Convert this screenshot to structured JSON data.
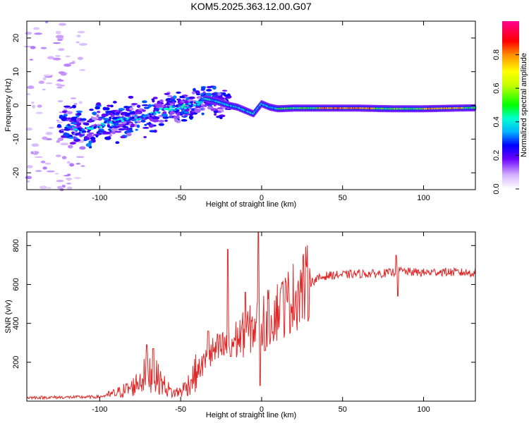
{
  "title": "KOM5.2025.363.12.00.G07",
  "chart_data": [
    {
      "type": "heatmap",
      "name": "spectrum",
      "xlabel": "Height of straight line (km)",
      "ylabel": "Frequency (Hz)",
      "xlim": [
        -145,
        132
      ],
      "ylim": [
        -25,
        25
      ],
      "xticks": [
        -100,
        -50,
        0,
        50,
        100
      ],
      "yticks": [
        -20,
        -10,
        0,
        10,
        20
      ],
      "colorbar": {
        "label": "Normalized spectral amplitude",
        "range": [
          0,
          1
        ],
        "ticks": [
          0.0,
          0.2,
          0.4,
          0.6,
          0.8
        ]
      },
      "ridge": {
        "x": [
          -145,
          -120,
          -110,
          -100,
          -90,
          -80,
          -70,
          -60,
          -50,
          -40,
          -35,
          -30,
          -25,
          -20,
          -15,
          -10,
          -5,
          0,
          5,
          10,
          20,
          40,
          60,
          80,
          100,
          120,
          132
        ],
        "freq": [
          -3,
          -6,
          -7.5,
          -6,
          -4.5,
          -4,
          -3,
          -1,
          -0.5,
          0.5,
          2,
          1.5,
          0.8,
          0,
          -0.5,
          -1.5,
          -2.5,
          0.5,
          -0.5,
          -1,
          -0.8,
          -0.8,
          -0.8,
          -1,
          -1,
          -0.8,
          -0.7
        ]
      }
    },
    {
      "type": "line",
      "name": "snr",
      "xlabel": "Height of straight line (km)",
      "ylabel": "SNR (v/v)",
      "xlim": [
        -145,
        132
      ],
      "ylim": [
        0,
        870
      ],
      "xticks": [
        -100,
        -50,
        0,
        50,
        100
      ],
      "yticks": [
        200,
        400,
        600,
        800
      ],
      "color": "#e02828",
      "trend": {
        "x": [
          -145,
          -120,
          -100,
          -90,
          -80,
          -75,
          -70,
          -65,
          -60,
          -55,
          -50,
          -45,
          -40,
          -35,
          -30,
          -25,
          -20,
          -15,
          -10,
          -5,
          0,
          5,
          10,
          15,
          20,
          25,
          30,
          35,
          40,
          50,
          60,
          70,
          80,
          85,
          90,
          100,
          110,
          120,
          132
        ],
        "y": [
          18,
          20,
          22,
          40,
          70,
          110,
          150,
          125,
          80,
          40,
          50,
          90,
          150,
          200,
          250,
          270,
          290,
          320,
          350,
          380,
          410,
          430,
          470,
          500,
          540,
          580,
          610,
          630,
          645,
          650,
          655,
          655,
          660,
          670,
          665,
          660,
          665,
          662,
          660
        ]
      },
      "spikes": [
        {
          "x": -71,
          "y": 290
        },
        {
          "x": -67,
          "y": 270
        },
        {
          "x": -33,
          "y": 360
        },
        {
          "x": -21,
          "y": 780
        },
        {
          "x": -19,
          "y": 230
        },
        {
          "x": -10,
          "y": 560
        },
        {
          "x": -2,
          "y": 870
        },
        {
          "x": -1,
          "y": 80
        },
        {
          "x": 2,
          "y": 260
        },
        {
          "x": 12,
          "y": 580
        },
        {
          "x": 83,
          "y": 750
        },
        {
          "x": 84,
          "y": 540
        }
      ]
    }
  ]
}
